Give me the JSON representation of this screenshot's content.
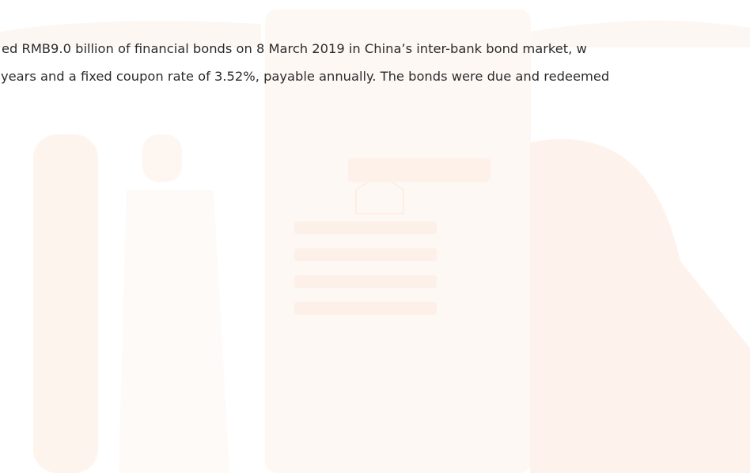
{
  "paragraph": {
    "lines": [
      "ed RMB9.0 billion of financial bonds on 8 March 2019 in China’s inter-bank bond market, w",
      "years and a fixed coupon rate of 3.52%, payable annually. The bonds were due and redeemed"
    ]
  }
}
